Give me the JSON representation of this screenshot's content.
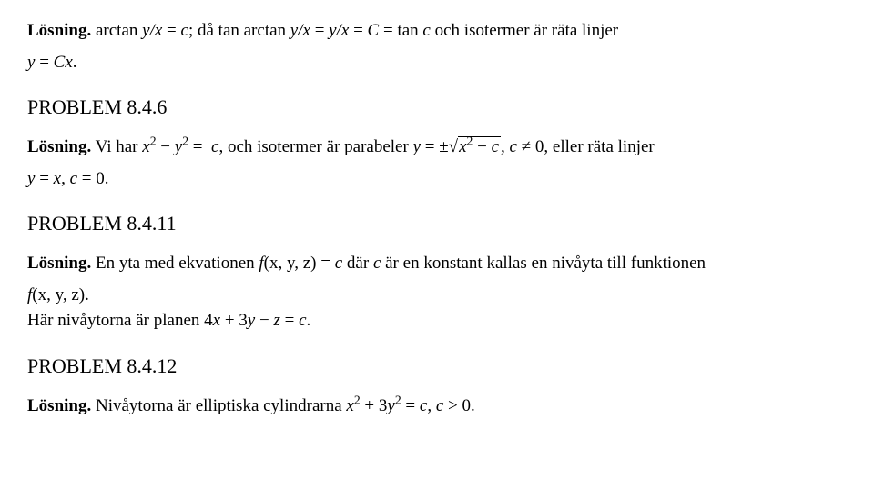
{
  "sec1": {
    "losning_label": "Lösning.",
    "line1_pre": " arctan ",
    "line1_yx": "y/x",
    "line1_eq1": " = ",
    "line1_c": "c",
    "line1_sep": "; då  tan arctan ",
    "line1_yx2": "y/x",
    "line1_eq2": " = ",
    "line1_yx3": "y/x",
    "line1_eq3": " = ",
    "line1_C": "C",
    "line1_eq4": " = tan ",
    "line1_c2": "c",
    "line1_tail": " och isotermer är räta linjer",
    "line2_y": "y",
    "line2_eq": " = ",
    "line2_Cx": "Cx",
    "line2_dot": "."
  },
  "p846": {
    "heading": "PROBLEM 8.4.6",
    "losning_label": "Lösning.",
    "line1_pre": " Vi har ",
    "line1_x": "x",
    "line1_minus": " − ",
    "line1_y": "y",
    "line1_eqc": " = ",
    "line1_c": "c",
    "line1_mid": ", och isotermer är parabeler ",
    "line1_y2": "y",
    "line1_eqpm": " = ±",
    "line1_sqrt_x": "x",
    "line1_sqrt_minus": " − ",
    "line1_sqrt_c": "c",
    "line1_comma_c": ", c",
    "line1_neq": " ≠ 0",
    "line1_tail": ", eller räta linjer",
    "line2_y": "y",
    "line2_eq": " = ",
    "line2_x": "x",
    "line2_comma": ", ",
    "line2_c": "c",
    "line2_eq0": " = 0."
  },
  "p8411": {
    "heading": "PROBLEM 8.4.11",
    "losning_label": "Lösning.",
    "line1_pre": " En yta med ekvationen ",
    "line1_f": "f",
    "line1_args": "(x, y, z)",
    "line1_eq": " = ",
    "line1_c": "c",
    "line1_mid": " där ",
    "line1_c2": "c",
    "line1_tail": " är en konstant kallas en nivåyta till funktionen",
    "line2_f": "f",
    "line2_args": "(x, y, z)",
    "line2_dot": ".",
    "line3_pre": "Här nivåytorna är planen 4",
    "line3_x": "x",
    "line3_plus": " + 3",
    "line3_y": "y",
    "line3_minus": " − ",
    "line3_z": "z",
    "line3_eqc": " = ",
    "line3_c": "c",
    "line3_dot": "."
  },
  "p8412": {
    "heading": "PROBLEM 8.4.12",
    "losning_label": "Lösning.",
    "line1_pre": " Nivåytorna är elliptiska cylindrarna ",
    "line1_x": "x",
    "line1_plus": " + 3",
    "line1_y": "y",
    "line1_eq": " = ",
    "line1_c": "c",
    "line1_comma": ", ",
    "line1_c2": "c",
    "line1_gt": " > 0."
  }
}
